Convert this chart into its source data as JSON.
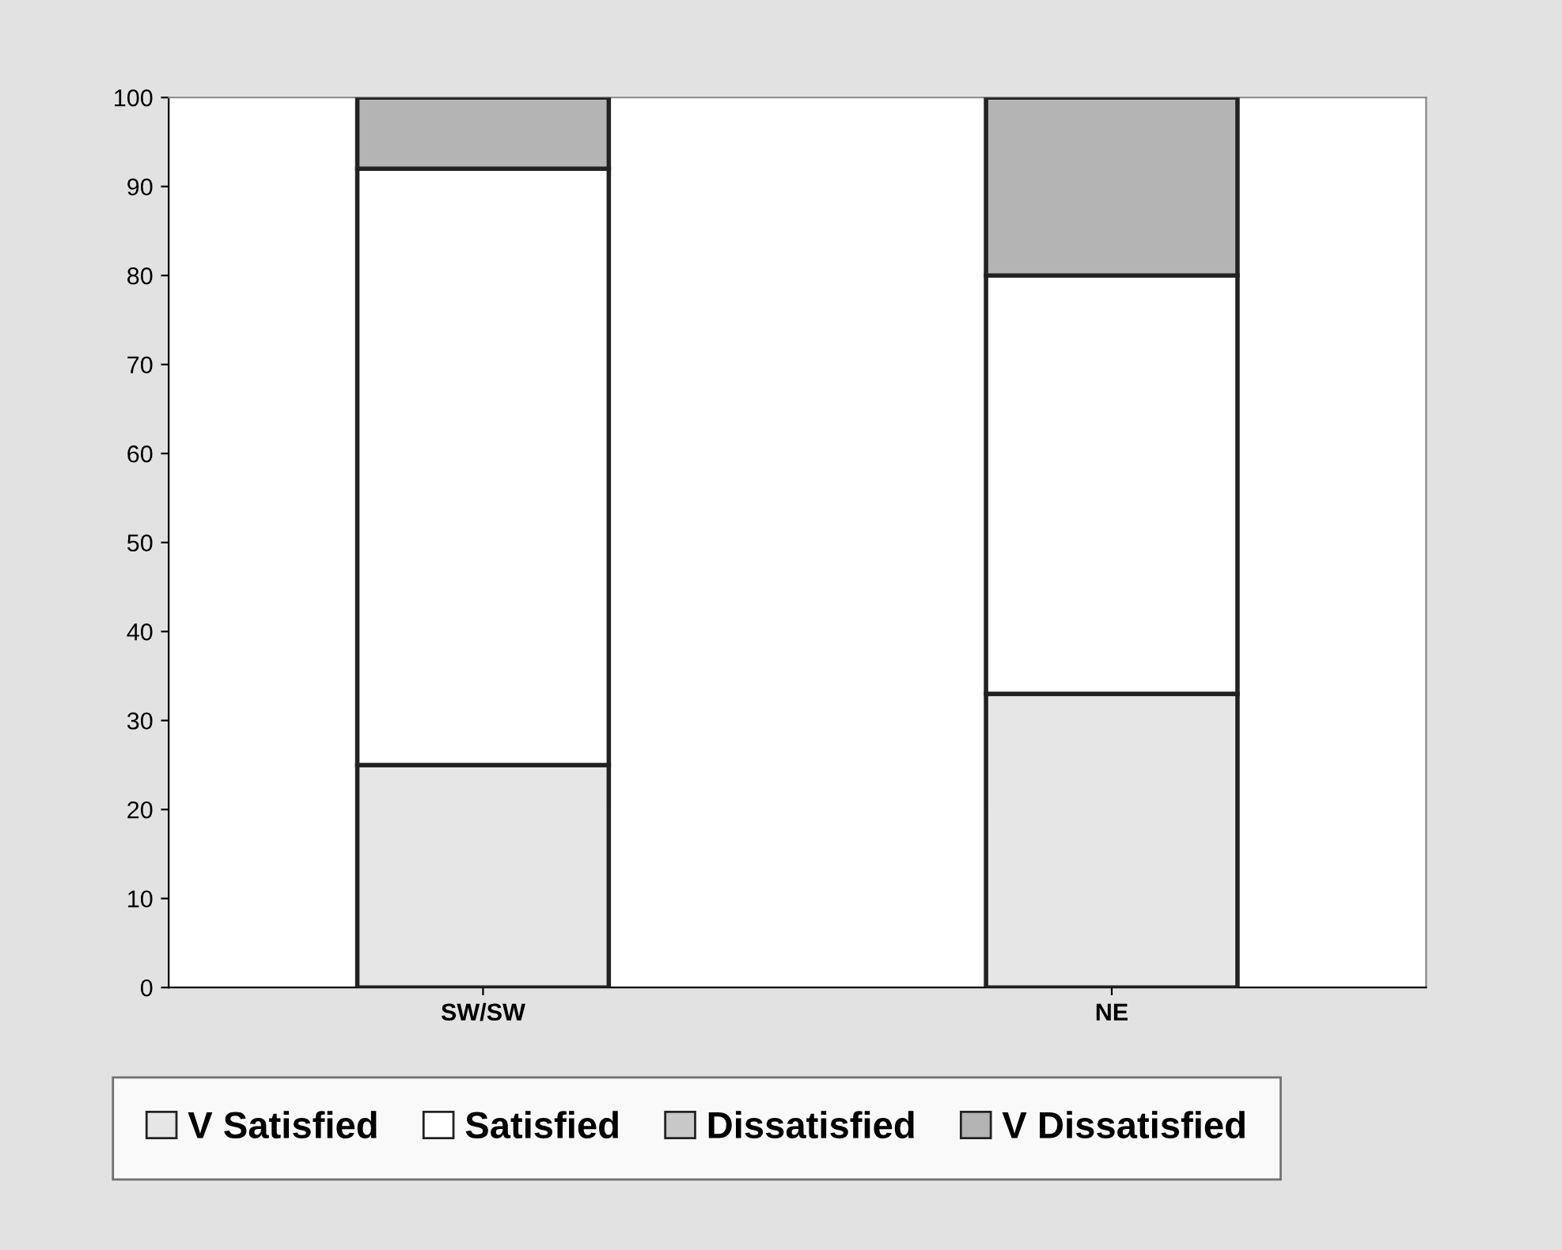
{
  "chart_data": {
    "type": "bar",
    "stacked": true,
    "categories": [
      "SW/SW",
      "NE"
    ],
    "series": [
      {
        "name": "V Satisfied",
        "color": "#e6e6e6",
        "values": [
          25,
          33
        ]
      },
      {
        "name": "Satisfied",
        "color": "#ffffff",
        "values": [
          67,
          47
        ]
      },
      {
        "name": "Dissatisfied",
        "color": "#c8c8c8",
        "values": [
          0,
          0
        ]
      },
      {
        "name": "V Dissatisfied",
        "color": "#b4b4b4",
        "values": [
          8,
          20
        ]
      }
    ],
    "ylim": [
      0,
      100
    ],
    "yticks": [
      0,
      10,
      20,
      30,
      40,
      50,
      60,
      70,
      80,
      90,
      100
    ],
    "grid": false,
    "legend": "bottom"
  }
}
